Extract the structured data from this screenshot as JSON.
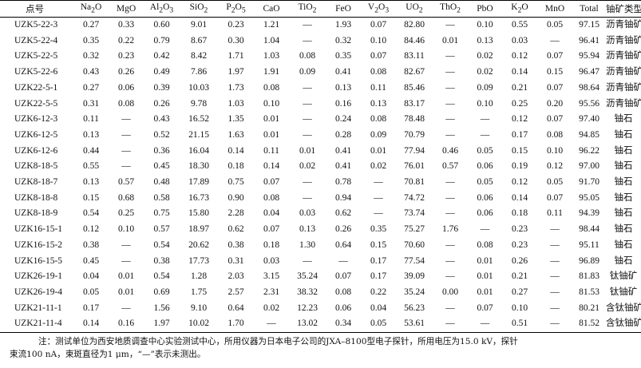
{
  "table": {
    "headers": [
      {
        "name": "sample",
        "html": "点号"
      },
      {
        "name": "na2o",
        "html": "Na<sub>2</sub>O"
      },
      {
        "name": "mgo",
        "html": "MgO"
      },
      {
        "name": "al2o3",
        "html": "Al<sub>2</sub>O<sub>3</sub>"
      },
      {
        "name": "sio2",
        "html": "SiO<sub>2</sub>"
      },
      {
        "name": "p2o5",
        "html": "P<sub>2</sub>O<sub>5</sub>"
      },
      {
        "name": "cao",
        "html": "CaO"
      },
      {
        "name": "tio2",
        "html": "TiO<sub>2</sub>"
      },
      {
        "name": "feo",
        "html": "FeO"
      },
      {
        "name": "v2o3",
        "html": "V<sub>2</sub>O<sub>3</sub>"
      },
      {
        "name": "uo2",
        "html": "UO<sub>2</sub>"
      },
      {
        "name": "tho2",
        "html": "ThO<sub>2</sub>"
      },
      {
        "name": "pbo",
        "html": "PbO"
      },
      {
        "name": "k2o",
        "html": "K<sub>2</sub>O"
      },
      {
        "name": "mno",
        "html": "MnO"
      },
      {
        "name": "total",
        "html": "Total"
      },
      {
        "name": "mineral-type",
        "html": "铀矿类型"
      }
    ],
    "rows": [
      [
        "UZK5-22-3",
        "0.27",
        "0.33",
        "0.60",
        "9.01",
        "0.23",
        "1.21",
        "—",
        "1.93",
        "0.07",
        "82.80",
        "—",
        "0.10",
        "0.55",
        "0.05",
        "97.15",
        "沥青铀矿"
      ],
      [
        "UZK5-22-4",
        "0.35",
        "0.22",
        "0.79",
        "8.67",
        "0.30",
        "1.04",
        "—",
        "0.32",
        "0.10",
        "84.46",
        "0.01",
        "0.13",
        "0.03",
        "—",
        "96.41",
        "沥青铀矿"
      ],
      [
        "UZK5-22-5",
        "0.32",
        "0.23",
        "0.42",
        "8.42",
        "1.71",
        "1.03",
        "0.08",
        "0.35",
        "0.07",
        "83.11",
        "—",
        "0.02",
        "0.12",
        "0.07",
        "95.94",
        "沥青铀矿"
      ],
      [
        "UZK5-22-6",
        "0.43",
        "0.26",
        "0.49",
        "7.86",
        "1.97",
        "1.91",
        "0.09",
        "0.41",
        "0.08",
        "82.67",
        "—",
        "0.02",
        "0.14",
        "0.15",
        "96.47",
        "沥青铀矿"
      ],
      [
        "UZK22-5-1",
        "0.27",
        "0.06",
        "0.39",
        "10.03",
        "1.73",
        "0.08",
        "—",
        "0.13",
        "0.11",
        "85.46",
        "—",
        "0.09",
        "0.21",
        "0.07",
        "98.64",
        "沥青铀矿"
      ],
      [
        "UZK22-5-5",
        "0.31",
        "0.08",
        "0.26",
        "9.78",
        "1.03",
        "0.10",
        "—",
        "0.16",
        "0.13",
        "83.17",
        "—",
        "0.10",
        "0.25",
        "0.20",
        "95.56",
        "沥青铀矿"
      ],
      [
        "UZK6-12-3",
        "0.11",
        "—",
        "0.43",
        "16.52",
        "1.35",
        "0.01",
        "—",
        "0.24",
        "0.08",
        "78.48",
        "—",
        "—",
        "0.12",
        "0.07",
        "97.40",
        "铀石"
      ],
      [
        "UZK6-12-5",
        "0.13",
        "—",
        "0.52",
        "21.15",
        "1.63",
        "0.01",
        "—",
        "0.28",
        "0.09",
        "70.79",
        "—",
        "—",
        "0.17",
        "0.08",
        "94.85",
        "铀石"
      ],
      [
        "UZK6-12-6",
        "0.44",
        "—",
        "0.36",
        "16.04",
        "0.14",
        "0.11",
        "0.01",
        "0.41",
        "0.01",
        "77.94",
        "0.46",
        "0.05",
        "0.15",
        "0.10",
        "96.22",
        "铀石"
      ],
      [
        "UZK8-18-5",
        "0.55",
        "—",
        "0.45",
        "18.30",
        "0.18",
        "0.14",
        "0.02",
        "0.41",
        "0.02",
        "76.01",
        "0.57",
        "0.06",
        "0.19",
        "0.12",
        "97.00",
        "铀石"
      ],
      [
        "UZK8-18-7",
        "0.13",
        "0.57",
        "0.48",
        "17.89",
        "0.75",
        "0.07",
        "—",
        "0.78",
        "—",
        "70.81",
        "—",
        "0.05",
        "0.12",
        "0.05",
        "91.70",
        "铀石"
      ],
      [
        "UZK8-18-8",
        "0.15",
        "0.68",
        "0.58",
        "16.73",
        "0.90",
        "0.08",
        "—",
        "0.94",
        "—",
        "74.72",
        "—",
        "0.06",
        "0.14",
        "0.07",
        "95.05",
        "铀石"
      ],
      [
        "UZK8-18-9",
        "0.54",
        "0.25",
        "0.75",
        "15.80",
        "2.28",
        "0.04",
        "0.03",
        "0.62",
        "—",
        "73.74",
        "—",
        "0.06",
        "0.18",
        "0.11",
        "94.39",
        "铀石"
      ],
      [
        "UZK16-15-1",
        "0.12",
        "0.10",
        "0.57",
        "18.97",
        "0.62",
        "0.07",
        "0.13",
        "0.26",
        "0.35",
        "75.27",
        "1.76",
        "—",
        "0.23",
        "—",
        "98.44",
        "铀石"
      ],
      [
        "UZK16-15-2",
        "0.38",
        "—",
        "0.54",
        "20.62",
        "0.38",
        "0.18",
        "1.30",
        "0.64",
        "0.15",
        "70.60",
        "—",
        "0.08",
        "0.23",
        "—",
        "95.11",
        "铀石"
      ],
      [
        "UZK16-15-5",
        "0.45",
        "—",
        "0.38",
        "17.73",
        "0.31",
        "0.03",
        "—",
        "—",
        "0.17",
        "77.54",
        "—",
        "0.01",
        "0.26",
        "—",
        "96.89",
        "铀石"
      ],
      [
        "UZK26-19-1",
        "0.04",
        "0.01",
        "0.54",
        "1.28",
        "2.03",
        "3.15",
        "35.24",
        "0.07",
        "0.17",
        "39.09",
        "—",
        "0.01",
        "0.21",
        "—",
        "81.83",
        "钛铀矿"
      ],
      [
        "UZK26-19-4",
        "0.05",
        "0.01",
        "0.69",
        "1.75",
        "2.57",
        "2.31",
        "38.32",
        "0.08",
        "0.22",
        "35.24",
        "0.00",
        "0.01",
        "0.27",
        "—",
        "81.53",
        "钛铀矿"
      ],
      [
        "UZK21-11-1",
        "0.17",
        "—",
        "1.56",
        "9.10",
        "0.64",
        "0.02",
        "12.23",
        "0.06",
        "0.04",
        "56.23",
        "—",
        "0.07",
        "0.10",
        "—",
        "80.21",
        "含钛铀矿"
      ],
      [
        "UZK21-11-4",
        "0.14",
        "0.16",
        "1.97",
        "10.02",
        "1.70",
        "—",
        "13.02",
        "0.34",
        "0.05",
        "53.61",
        "—",
        "—",
        "0.51",
        "—",
        "81.52",
        "含钛铀矿"
      ]
    ]
  },
  "note": {
    "line1": "注：测试单位为西安地质调查中心实验测试中心，所用仪器为日本电子公司的JXA–8100型电子探针，所用电压为15.0 kV，探针",
    "line2": "束流100 nA，束斑直径为1 μm，“—”表示未测出。"
  }
}
